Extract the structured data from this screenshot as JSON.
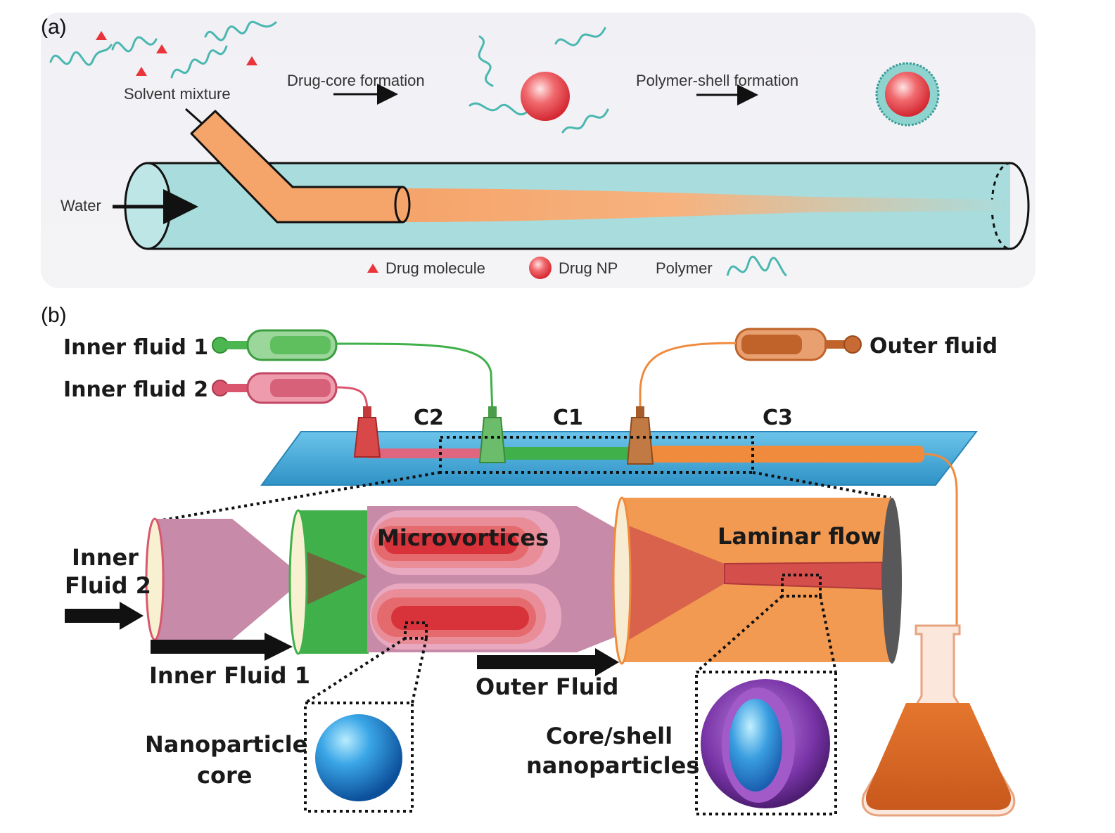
{
  "panel_a": {
    "tag": "(a)",
    "solvent_mixture": "Solvent mixture",
    "drug_core_formation": "Drug-core formation",
    "polymer_shell_formation": "Polymer-shell formation",
    "water": "Water",
    "legend": {
      "drug_molecule": "Drug molecule",
      "drug_np": "Drug NP",
      "polymer": "Polymer"
    }
  },
  "panel_b": {
    "tag": "(b)",
    "inner_fluid_1": "Inner fluid 1",
    "inner_fluid_2": "Inner fluid 2",
    "outer_fluid": "Outer fluid",
    "c1": "C1",
    "c2": "C2",
    "c3": "C3",
    "microvortices": "Microvortices",
    "laminar_flow": "Laminar flow",
    "inner_fluid_2_in_line1": "Inner",
    "inner_fluid_2_in_line2": "Fluid 2",
    "inner_fluid_1_in": "Inner Fluid 1",
    "outer_fluid_in": "Outer Fluid",
    "nanoparticle_core_line1": "Nanoparticle",
    "nanoparticle_core_line2": "core",
    "core_shell_line1": "Core/shell",
    "core_shell_line2": "nanoparticles"
  },
  "colors": {
    "water_tube": "#a9dcdc",
    "organic_stream": "#f5a46a",
    "polymer": "#4ab7b0",
    "drug": "#e8343a",
    "inner_fluid_1": "#3fb04a",
    "inner_fluid_2": "#d9566e",
    "outer_fluid": "#f08a3c",
    "chip": "#3aa6d6",
    "mixing_zone": "#c78aa8",
    "nanoparticle": "#2a86c8",
    "shell": "#7d3aa0"
  }
}
